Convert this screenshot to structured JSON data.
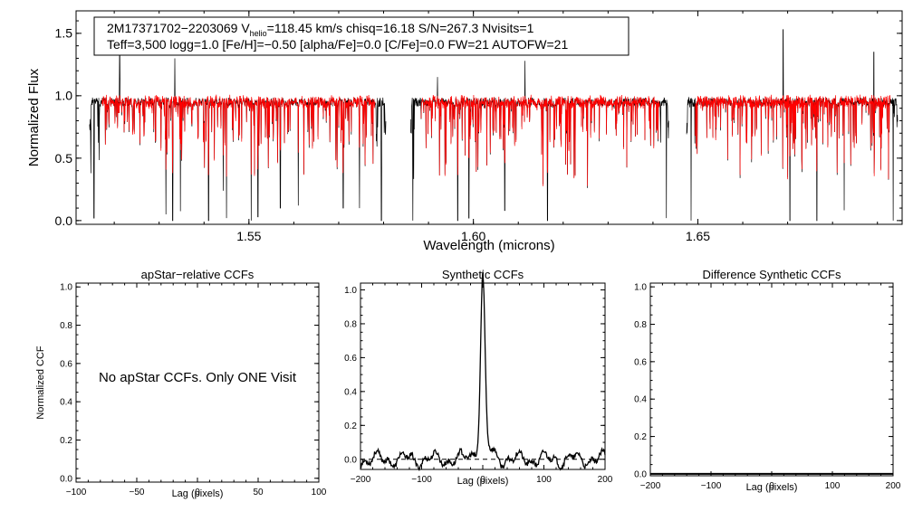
{
  "header": {
    "line1_obj": "2M17371702−2203069",
    "line1_v": "V",
    "line1_vsub": "helio",
    "line1_rest": "=118.45 km/s  chisq=16.18  S/N=267.3  Nvisits=1",
    "line2": "Teff=3,500 logg=1.0 [Fe/H]=−0.50 [alpha/Fe]=0.0 [C/Fe]=0.0 FW=21 AUTOFW=21"
  },
  "colors": {
    "observed": "#000000",
    "model": "#ff0000",
    "axes": "#000000"
  },
  "chart_data": [
    {
      "type": "line",
      "xlabel": "Wavelength (microns)",
      "ylabel": "Normalized Flux",
      "xlim": [
        1.5115,
        1.6955
      ],
      "ylim": [
        -0.03,
        1.68
      ],
      "xticks": [
        1.55,
        1.6,
        1.65
      ],
      "xtick_labels": [
        "1.55",
        "1.60",
        "1.65"
      ],
      "yticks": [
        0.0,
        0.5,
        1.0,
        1.5
      ],
      "ytick_labels": [
        "0.0",
        "0.5",
        "1.0",
        "1.5"
      ],
      "chip_ranges": [
        [
          1.5145,
          1.5805
        ],
        [
          1.586,
          1.6435
        ],
        [
          1.6475,
          1.6945
        ]
      ],
      "continuum": 0.95,
      "deep_lines": [
        {
          "x": 1.5155,
          "y": 0.02
        },
        {
          "x": 1.5315,
          "y": 0.05
        },
        {
          "x": 1.533,
          "y": 0.0
        },
        {
          "x": 1.541,
          "y": 0.0
        },
        {
          "x": 1.545,
          "y": 0.02
        },
        {
          "x": 1.5505,
          "y": 0.0
        },
        {
          "x": 1.552,
          "y": 0.03
        },
        {
          "x": 1.557,
          "y": 0.1
        },
        {
          "x": 1.561,
          "y": 0.12
        },
        {
          "x": 1.571,
          "y": 0.1
        },
        {
          "x": 1.5795,
          "y": 0.0
        },
        {
          "x": 1.5865,
          "y": 0.0
        },
        {
          "x": 1.592,
          "y": 0.0
        },
        {
          "x": 1.5965,
          "y": 0.0
        },
        {
          "x": 1.599,
          "y": 0.02
        },
        {
          "x": 1.607,
          "y": 0.08
        },
        {
          "x": 1.6165,
          "y": 0.0
        },
        {
          "x": 1.643,
          "y": 0.02
        },
        {
          "x": 1.6485,
          "y": 0.0
        },
        {
          "x": 1.6705,
          "y": 0.0
        },
        {
          "x": 1.6765,
          "y": 0.0
        },
        {
          "x": 1.6935,
          "y": 0.0
        }
      ],
      "spikes": [
        {
          "x": 1.5212,
          "y": 1.32
        },
        {
          "x": 1.5335,
          "y": 1.3
        },
        {
          "x": 1.6115,
          "y": 1.28
        },
        {
          "x": 1.669,
          "y": 1.53
        },
        {
          "x": 1.6892,
          "y": 1.35
        },
        {
          "x": 1.592,
          "y": 1.15
        }
      ]
    },
    {
      "type": "line",
      "title": "apStar−relative CCFs",
      "xlabel": "Lag (pixels)",
      "ylabel": "Normalized CCF",
      "xlim": [
        -100,
        100
      ],
      "ylim": [
        -0.02,
        1.02
      ],
      "xticks": [
        -100,
        -50,
        0,
        50,
        100
      ],
      "xtick_labels": [
        "−100",
        "−50",
        "0",
        "50",
        "100"
      ],
      "yticks": [
        0.0,
        0.2,
        0.4,
        0.6,
        0.8,
        1.0
      ],
      "ytick_labels": [
        "0.0",
        "0.2",
        "0.4",
        "0.6",
        "0.8",
        "1.0"
      ],
      "annotation": "No apStar CCFs.  Only ONE Visit"
    },
    {
      "type": "line",
      "title": "Synthetic CCFs",
      "xlabel": "Lag (pixels)",
      "ylabel": "",
      "xlim": [
        -200,
        200
      ],
      "ylim": [
        -0.06,
        1.04
      ],
      "xticks": [
        -200,
        -100,
        0,
        100,
        200
      ],
      "xtick_labels": [
        "−200",
        "−100",
        "0",
        "100",
        "200"
      ],
      "yticks": [
        0.0,
        0.2,
        0.4,
        0.6,
        0.8,
        1.0
      ],
      "ytick_labels": [
        "0.0",
        "0.2",
        "0.4",
        "0.6",
        "0.8",
        "1.0"
      ],
      "peak": {
        "x": 0,
        "y": 1.0,
        "width": 5
      },
      "zero_line_style": "dashed"
    },
    {
      "type": "line",
      "title": "Difference Synthetic CCFs",
      "xlabel": "Lag (pixels)",
      "ylabel": "",
      "xlim": [
        -200,
        200
      ],
      "ylim": [
        -0.01,
        1.02
      ],
      "xticks": [
        -200,
        -100,
        0,
        100,
        200
      ],
      "xtick_labels": [
        "−200",
        "−100",
        "0",
        "100",
        "200"
      ],
      "yticks": [
        0.0,
        0.2,
        0.4,
        0.6,
        0.8,
        1.0
      ],
      "ytick_labels": [
        "0.0",
        "0.2",
        "0.4",
        "0.6",
        "0.8",
        "1.0"
      ]
    }
  ]
}
